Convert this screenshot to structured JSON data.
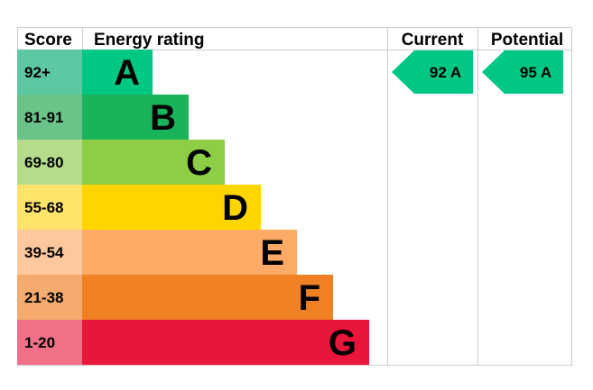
{
  "colors": {
    "grid": "#cccccc",
    "marker": "#00c781"
  },
  "chart_data": {
    "type": "bar",
    "headers": {
      "score": "Score",
      "rating": "Energy rating",
      "current": "Current",
      "potential": "Potential"
    },
    "bands": [
      {
        "letter": "A",
        "range": "92+",
        "bar_color": "#00c781",
        "score_color": "#5cc7a0"
      },
      {
        "letter": "B",
        "range": "81-91",
        "bar_color": "#19b459",
        "score_color": "#6ac389"
      },
      {
        "letter": "C",
        "range": "69-80",
        "bar_color": "#8dce46",
        "score_color": "#b4dc8a"
      },
      {
        "letter": "D",
        "range": "55-68",
        "bar_color": "#ffd500",
        "score_color": "#ffe36a"
      },
      {
        "letter": "E",
        "range": "39-54",
        "bar_color": "#fcaa65",
        "score_color": "#fdc89e"
      },
      {
        "letter": "F",
        "range": "21-38",
        "bar_color": "#ef8023",
        "score_color": "#f4ab6d"
      },
      {
        "letter": "G",
        "range": "1-20",
        "bar_color": "#e9153b",
        "score_color": "#f07088"
      }
    ],
    "current": {
      "value": 92,
      "band": "A",
      "label": "92  A"
    },
    "potential": {
      "value": 95,
      "band": "A",
      "label": "95  A"
    }
  }
}
